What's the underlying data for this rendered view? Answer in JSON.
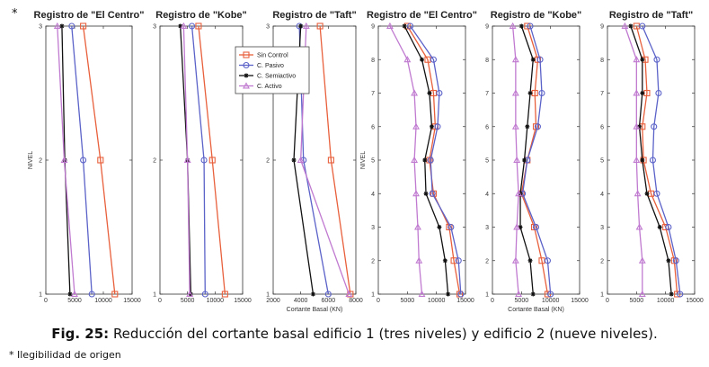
{
  "corner_mark": "*",
  "caption": {
    "label": "Fig. 25:",
    "text": "Reducción del cortante basal edificio 1 (tres niveles) y edificio 2 (nueve niveles)."
  },
  "footnote": "* Ilegibilidad de origen",
  "colors": {
    "sin_control": "#e8603c",
    "c_pasivo": "#5b62c8",
    "c_semiactivo": "#111111",
    "c_activo": "#c07ad0"
  },
  "chart_data": [
    {
      "type": "line",
      "title": "Registro de \"El Centro\"",
      "xlabel": "",
      "ylabel": "NIVEL",
      "xlim": [
        0,
        15000
      ],
      "xticks": [
        0,
        5000,
        10000,
        15000
      ],
      "xtick_labels": [
        "0",
        "5000",
        "10000",
        "15000"
      ],
      "ylim": [
        1,
        3
      ],
      "yticks": [
        1,
        2,
        3
      ],
      "y": [
        1,
        2,
        3
      ],
      "series": [
        {
          "key": "sin_control",
          "values": [
            12000,
            9500,
            6500
          ]
        },
        {
          "key": "c_pasivo",
          "values": [
            8000,
            6500,
            4500
          ]
        },
        {
          "key": "c_semiactivo",
          "values": [
            4200,
            3300,
            2800
          ]
        },
        {
          "key": "c_activo",
          "values": [
            5000,
            3200,
            2000
          ]
        }
      ]
    },
    {
      "type": "line",
      "title": "Registro de \"Kobe\"",
      "xlabel": "",
      "ylabel": "",
      "xlim": [
        0,
        15000
      ],
      "xticks": [
        0,
        5000,
        10000,
        15000
      ],
      "xtick_labels": [
        "0",
        "5000",
        "10000",
        "15000"
      ],
      "ylim": [
        1,
        3
      ],
      "yticks": [
        1,
        2,
        3
      ],
      "y": [
        1,
        2,
        3
      ],
      "series": [
        {
          "key": "sin_control",
          "values": [
            11800,
            9500,
            7000
          ]
        },
        {
          "key": "c_pasivo",
          "values": [
            8200,
            8000,
            5800
          ]
        },
        {
          "key": "c_semiactivo",
          "values": [
            5600,
            5000,
            3700
          ]
        },
        {
          "key": "c_activo",
          "values": [
            5400,
            5000,
            4300
          ]
        }
      ]
    },
    {
      "type": "line",
      "title": "Registro de \"Taft\"",
      "xlabel": "Cortante Basal (KN)",
      "ylabel": "",
      "xlim": [
        2000,
        8000
      ],
      "xticks": [
        2000,
        4000,
        6000,
        8000
      ],
      "xtick_labels": [
        "2000",
        "4000",
        "6000",
        "8000"
      ],
      "ylim": [
        1,
        3
      ],
      "yticks": [
        1,
        2,
        3
      ],
      "y": [
        1,
        2,
        3
      ],
      "series": [
        {
          "key": "sin_control",
          "values": [
            7600,
            6200,
            5400
          ]
        },
        {
          "key": "c_pasivo",
          "values": [
            6000,
            4200,
            3900
          ]
        },
        {
          "key": "c_semiactivo",
          "values": [
            4900,
            3500,
            4000
          ]
        },
        {
          "key": "c_activo",
          "values": [
            7500,
            4000,
            4400
          ]
        }
      ]
    },
    {
      "type": "line",
      "title": "Registro de \"El Centro\"",
      "xlabel": "",
      "ylabel": "NIVEL",
      "xlim": [
        0,
        15000
      ],
      "xticks": [
        0,
        5000,
        10000,
        15000
      ],
      "xtick_labels": [
        "0",
        "5000",
        "10000",
        "15000"
      ],
      "ylim": [
        1,
        9
      ],
      "yticks": [
        1,
        2,
        3,
        4,
        5,
        6,
        7,
        8,
        9
      ],
      "y": [
        1,
        2,
        3,
        4,
        5,
        6,
        7,
        8,
        9
      ],
      "series": [
        {
          "key": "sin_control",
          "values": [
            14000,
            13000,
            12200,
            9500,
            8800,
            9800,
            9500,
            8500,
            5000
          ]
        },
        {
          "key": "c_pasivo",
          "values": [
            14200,
            13800,
            12500,
            9300,
            9000,
            10200,
            10500,
            9500,
            5500
          ]
        },
        {
          "key": "c_semiactivo",
          "values": [
            12000,
            11500,
            10500,
            8200,
            8000,
            9200,
            8800,
            7500,
            4500
          ]
        },
        {
          "key": "c_activo",
          "values": [
            7500,
            7000,
            6800,
            6500,
            6200,
            6500,
            6200,
            5000,
            2000
          ]
        }
      ]
    },
    {
      "type": "line",
      "title": "Registro de \"Kobe\"",
      "xlabel": "Cortante Basal (KN)",
      "ylabel": "",
      "xlim": [
        0,
        15000
      ],
      "xticks": [
        0,
        5000,
        10000,
        15000
      ],
      "xtick_labels": [
        "0",
        "5000",
        "10000",
        "15000"
      ],
      "ylim": [
        1,
        9
      ],
      "yticks": [
        1,
        2,
        3,
        4,
        5,
        6,
        7,
        8,
        9
      ],
      "y": [
        1,
        2,
        3,
        4,
        5,
        6,
        7,
        8,
        9
      ],
      "series": [
        {
          "key": "sin_control",
          "values": [
            9500,
            8500,
            7200,
            5000,
            6000,
            7500,
            7300,
            7800,
            6000
          ]
        },
        {
          "key": "c_pasivo",
          "values": [
            10000,
            9500,
            7500,
            5200,
            6000,
            7800,
            8500,
            8200,
            6500
          ]
        },
        {
          "key": "c_semiactivo",
          "values": [
            7000,
            6500,
            4800,
            4800,
            5500,
            6000,
            6500,
            7000,
            5000
          ]
        },
        {
          "key": "c_activo",
          "values": [
            4500,
            4000,
            4200,
            4500,
            4200,
            4000,
            4000,
            4000,
            3500
          ]
        }
      ]
    },
    {
      "type": "line",
      "title": "Registro de \"Taft\"",
      "xlabel": "",
      "ylabel": "",
      "xlim": [
        0,
        15000
      ],
      "xticks": [
        0,
        5000,
        10000,
        15000
      ],
      "xtick_labels": [
        "0",
        "5000",
        "10000",
        "15000"
      ],
      "ylim": [
        1,
        9
      ],
      "yticks": [
        1,
        2,
        3,
        4,
        5,
        6,
        7,
        8,
        9
      ],
      "y": [
        1,
        2,
        3,
        4,
        5,
        6,
        7,
        8,
        9
      ],
      "series": [
        {
          "key": "sin_control",
          "values": [
            12000,
            11500,
            10000,
            7500,
            6200,
            6000,
            6800,
            6500,
            5000
          ]
        },
        {
          "key": "c_pasivo",
          "values": [
            12500,
            11800,
            10500,
            8500,
            7800,
            8000,
            8800,
            8500,
            6000
          ]
        },
        {
          "key": "c_semiactivo",
          "values": [
            11000,
            10500,
            9000,
            6800,
            6000,
            5500,
            6000,
            6000,
            4000
          ]
        },
        {
          "key": "c_activo",
          "values": [
            6000,
            6000,
            5500,
            5200,
            5000,
            5000,
            5000,
            5000,
            3000
          ]
        }
      ]
    }
  ],
  "legend": {
    "placement": "inside third panel, upper-left",
    "items": [
      {
        "key": "sin_control",
        "label": "Sin Control",
        "marker": "square"
      },
      {
        "key": "c_pasivo",
        "label": "C. Pasivo",
        "marker": "circle"
      },
      {
        "key": "c_semiactivo",
        "label": "C. Semiactivo",
        "marker": "star"
      },
      {
        "key": "c_activo",
        "label": "C. Activo",
        "marker": "triangle"
      }
    ]
  }
}
